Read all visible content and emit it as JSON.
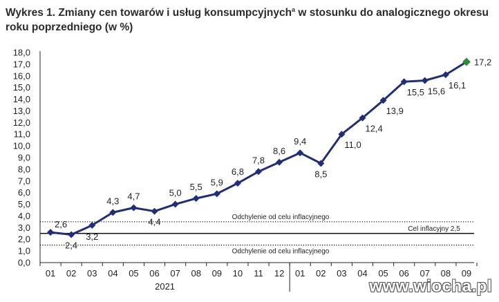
{
  "title": {
    "label": "Wykres 1.",
    "line1": "Zmiany cen towarów i usług konsumpcyjnych",
    "superscript": "a",
    "line1_end": " w stosunku do analogicznego okresu",
    "line2": "roku poprzedniego (w %)"
  },
  "watermark": "www.wiocha.pl",
  "chart_data": {
    "type": "line",
    "categories": [
      "01",
      "02",
      "03",
      "04",
      "05",
      "06",
      "07",
      "08",
      "09",
      "10",
      "11",
      "12",
      "01",
      "02",
      "03",
      "04",
      "05",
      "06",
      "07",
      "08",
      "09"
    ],
    "year_labels": [
      {
        "text": "2021",
        "span": [
          0,
          11
        ]
      }
    ],
    "series": [
      {
        "values": [
          2.6,
          2.4,
          3.2,
          4.3,
          4.7,
          4.4,
          5.0,
          5.5,
          5.9,
          6.8,
          7.8,
          8.6,
          9.4,
          8.5,
          11.0,
          12.4,
          13.9,
          15.5,
          15.6,
          16.1,
          17.2
        ],
        "labels": [
          "2,6",
          "2,4",
          "3,2",
          "4,3",
          "4,7",
          "4,4",
          "5,0",
          "5,5",
          "5,9",
          "6,8",
          "7,8",
          "8,6",
          "9,4",
          "8,5",
          "11,0",
          "12,4",
          "13,9",
          "15,5",
          "15,6",
          "16,1",
          "17,2"
        ],
        "color": "#1f2d7a",
        "last_point_color": "#2e8b3a"
      }
    ],
    "yticks": [
      "0,0",
      "1,0",
      "2,0",
      "3,0",
      "4,0",
      "5,0",
      "6,0",
      "7,0",
      "8,0",
      "9,0",
      "10,0",
      "11,0",
      "12,0",
      "13,0",
      "14,0",
      "15,0",
      "16,0",
      "17,0",
      "18,0"
    ],
    "ylim": [
      0,
      18
    ],
    "reference_lines": [
      {
        "value": 3.5,
        "style": "dotted",
        "label": "Odchylenie od celu inflacyjnego"
      },
      {
        "value": 2.5,
        "style": "solid",
        "label": "Cel inflacyjny 2,5"
      },
      {
        "value": 1.5,
        "style": "dotted",
        "label": "Odchylenie od celu inflacyjnego"
      }
    ],
    "grid": false,
    "legend": "none"
  }
}
